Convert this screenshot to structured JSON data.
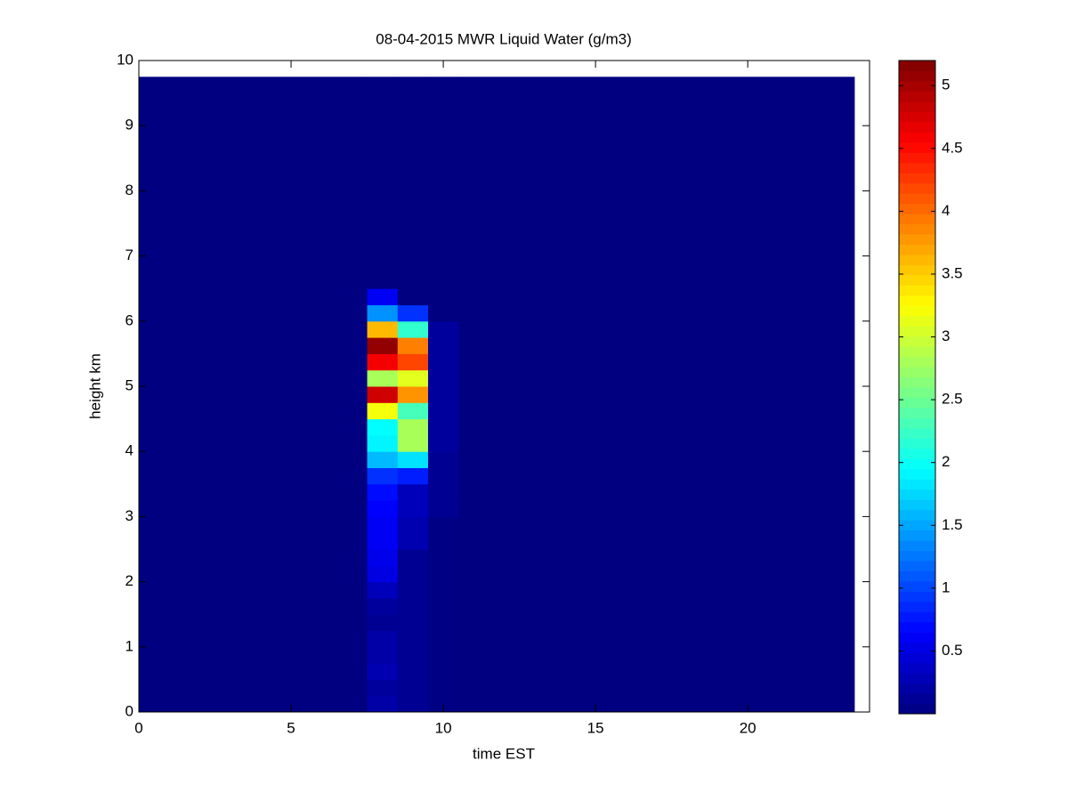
{
  "chart_data": {
    "type": "heatmap",
    "title": "08-04-2015 MWR Liquid Water (g/m3)",
    "x_label": "time EST",
    "y_label": "height km",
    "x_edges": [
      0,
      7.5,
      8.5,
      9.5,
      10.5,
      23.5
    ],
    "y_edges": [
      0,
      0.25,
      0.5,
      0.75,
      1,
      1.25,
      1.5,
      1.75,
      2,
      2.25,
      2.5,
      2.75,
      3,
      3.25,
      3.5,
      3.75,
      4,
      4.25,
      4.5,
      4.75,
      5,
      5.25,
      5.5,
      5.75,
      6,
      6.25,
      6.5,
      6.75,
      7,
      7.25,
      7.5,
      7.75,
      8,
      8.25,
      8.5,
      8.75,
      9,
      9.25,
      9.5,
      9.75
    ],
    "values": [
      [
        0,
        0,
        0,
        0,
        0,
        0,
        0,
        0,
        0,
        0,
        0,
        0,
        0,
        0,
        0,
        0,
        0,
        0,
        0,
        0,
        0,
        0,
        0,
        0,
        0,
        0,
        0,
        0,
        0,
        0,
        0,
        0,
        0,
        0,
        0,
        0,
        0,
        0,
        0
      ],
      [
        0.2,
        0.15,
        0.25,
        0.2,
        0.2,
        0.1,
        0.15,
        0.3,
        0.5,
        0.55,
        0.6,
        0.6,
        0.65,
        0.7,
        0.9,
        1.6,
        1.9,
        1.95,
        3.2,
        4.8,
        2.8,
        4.6,
        5.1,
        3.6,
        1.4,
        0.6,
        0,
        0,
        0,
        0,
        0,
        0,
        0,
        0,
        0,
        0,
        0,
        0,
        0
      ],
      [
        0.1,
        0.1,
        0.1,
        0.1,
        0.1,
        0.1,
        0.1,
        0.1,
        0.1,
        0.1,
        0.25,
        0.25,
        0.3,
        0.3,
        0.8,
        1.8,
        2.8,
        2.8,
        2.3,
        3.8,
        3.1,
        4.2,
        3.9,
        2.2,
        0.9,
        0,
        0,
        0,
        0,
        0,
        0,
        0,
        0,
        0,
        0,
        0,
        0,
        0,
        0
      ],
      [
        0.03,
        0.03,
        0.03,
        0.03,
        0.03,
        0.03,
        0.03,
        0.03,
        0.03,
        0.03,
        0.03,
        0.03,
        0.1,
        0.1,
        0.1,
        0.1,
        0.15,
        0.15,
        0.15,
        0.15,
        0.15,
        0.15,
        0.15,
        0.15,
        0,
        0,
        0,
        0,
        0,
        0,
        0,
        0,
        0,
        0,
        0,
        0,
        0,
        0,
        0
      ],
      [
        0,
        0,
        0,
        0,
        0,
        0,
        0,
        0,
        0,
        0,
        0,
        0,
        0,
        0,
        0,
        0,
        0,
        0,
        0,
        0,
        0,
        0,
        0,
        0,
        0,
        0,
        0,
        0,
        0,
        0,
        0,
        0,
        0,
        0,
        0,
        0,
        0,
        0,
        0
      ]
    ],
    "xlim": [
      0,
      24
    ],
    "xticks": [
      0,
      5,
      10,
      15,
      20
    ],
    "ylim": [
      0,
      10
    ],
    "yticks": [
      0,
      1,
      2,
      3,
      4,
      5,
      6,
      7,
      8,
      9,
      10
    ],
    "colormap": "jet",
    "clim": [
      0,
      5.2
    ],
    "cticks": [
      0.5,
      1,
      1.5,
      2,
      2.5,
      3,
      3.5,
      4,
      4.5,
      5
    ]
  }
}
